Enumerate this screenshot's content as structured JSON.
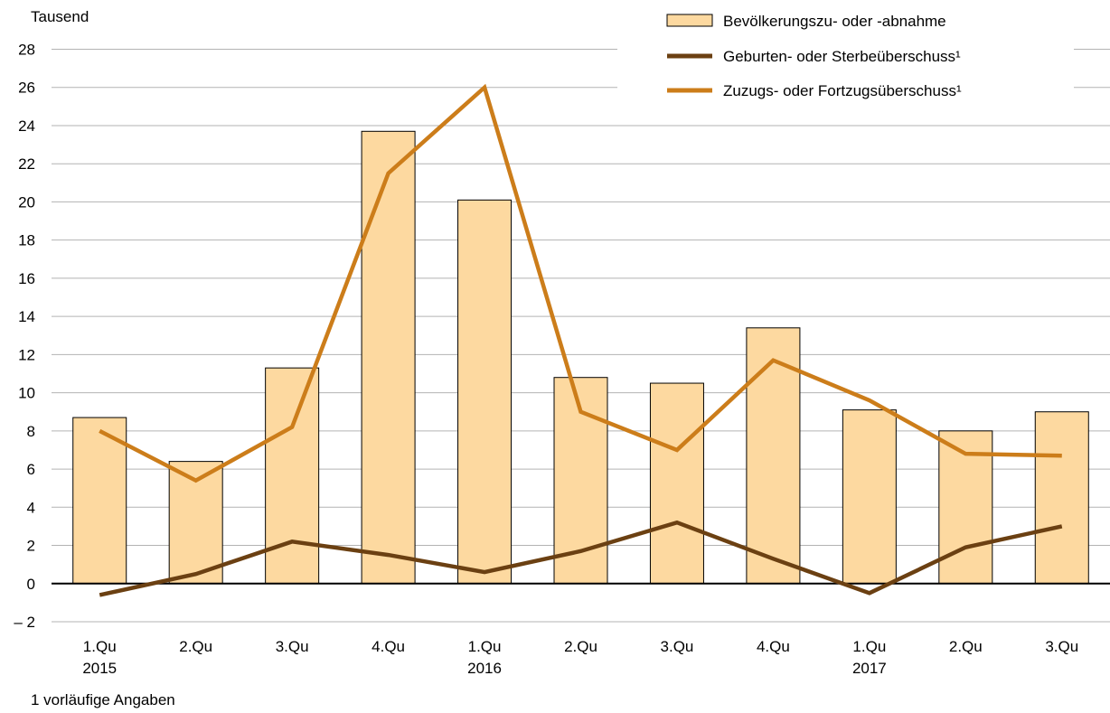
{
  "chart_data": {
    "type": "bar",
    "unit_label": "Tausend",
    "categories": [
      "1.Qu",
      "2.Qu",
      "3.Qu",
      "4.Qu",
      "1.Qu",
      "2.Qu",
      "3.Qu",
      "4.Qu",
      "1.Qu",
      "2.Qu",
      "3.Qu"
    ],
    "years": [
      "2015",
      "",
      "",
      "",
      "2016",
      "",
      "",
      "",
      "2017",
      "",
      ""
    ],
    "ylim": [
      -2,
      28
    ],
    "yticks": [
      -2,
      0,
      2,
      4,
      6,
      8,
      10,
      12,
      14,
      16,
      18,
      20,
      22,
      24,
      26,
      28
    ],
    "ytick_labels": [
      "– 2",
      "0",
      "2",
      "4",
      "6",
      "8",
      "10",
      "12",
      "14",
      "16",
      "18",
      "20",
      "22",
      "24",
      "26",
      "28"
    ],
    "grid": true,
    "legend_position": "top-right",
    "series": [
      {
        "name": "Bevölkerungszu- oder -abnahme",
        "kind": "bar",
        "color": "#fdd9a0",
        "values": [
          8.7,
          6.4,
          11.3,
          23.7,
          20.1,
          10.8,
          10.5,
          13.4,
          9.1,
          8.0,
          9.0
        ]
      },
      {
        "name": "Geburten- oder Sterbeüberschuss¹",
        "kind": "line",
        "color": "#6b4012",
        "values": [
          -0.6,
          0.5,
          2.2,
          1.5,
          0.6,
          1.7,
          3.2,
          1.3,
          -0.5,
          1.9,
          3.0
        ]
      },
      {
        "name": "Zuzugs- oder Fortzugsüberschuss¹",
        "kind": "line",
        "color": "#cc7d1a",
        "values": [
          8.0,
          5.4,
          8.2,
          21.5,
          26.0,
          9.0,
          7.0,
          11.7,
          9.6,
          6.8,
          6.7
        ]
      }
    ],
    "footnote": "1 vorläufige Angaben"
  }
}
